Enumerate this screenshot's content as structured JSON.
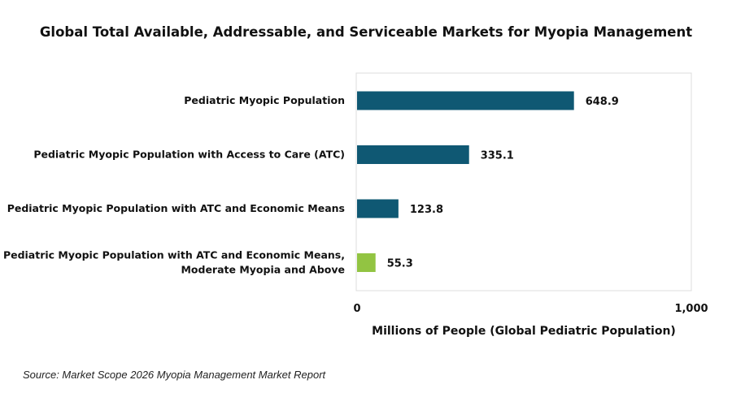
{
  "chart_data": {
    "type": "bar",
    "orientation": "horizontal",
    "title": "Global Total Available, Addressable, and Serviceable Markets for Myopia Management",
    "categories": [
      [
        "Pediatric Myopic Population"
      ],
      [
        "Pediatric Myopic Population with Access to Care (ATC)"
      ],
      [
        "Pediatric Myopic Population with ATC and Economic Means"
      ],
      [
        "Pediatric Myopic Population with ATC and Economic Means,",
        "Moderate Myopia and Above"
      ]
    ],
    "values": [
      648.9,
      335.1,
      123.8,
      55.3
    ],
    "value_labels": [
      "648.9",
      "335.1",
      "123.8",
      "55.3"
    ],
    "bar_colors": [
      "#0f5873",
      "#0f5873",
      "#0f5873",
      "#92c442"
    ],
    "xlabel": "Millions of People (Global Pediatric Population)",
    "ylabel": "",
    "xlim": [
      0,
      1000
    ],
    "x_ticks": [
      0,
      1000
    ],
    "x_tick_labels": [
      "0",
      "1,000"
    ],
    "grid": false,
    "legend": "none"
  },
  "source_note": "Source: Market Scope 2026 Myopia Management Market Report"
}
